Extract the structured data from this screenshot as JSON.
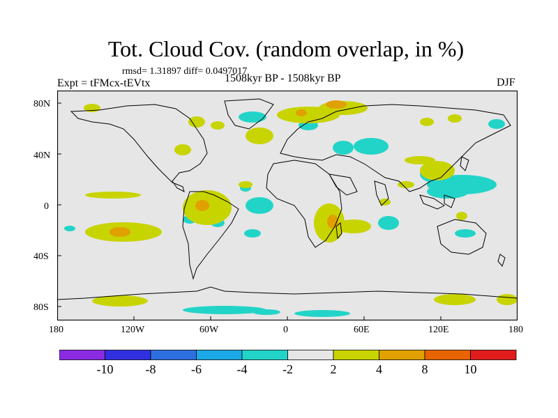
{
  "title": "Tot. Cloud Cov. (random overlap, in %)",
  "stats": "rmsd= 1.31897 diff= 0.0497017",
  "expt_label": "Expt = tFMcx-tEVtx",
  "period": "1508kyr BP - 1508kyr BP",
  "season": "DJF",
  "lat_ticks": [
    "80N",
    "40N",
    "0",
    "40S",
    "80S"
  ],
  "lon_ticks": [
    "180",
    "120W",
    "60W",
    "0",
    "60E",
    "120E",
    "180"
  ],
  "colorbar": {
    "colors": [
      "#8a2be2",
      "#3030e0",
      "#2e6fe0",
      "#1aa8e6",
      "#22d4c8",
      "#e6e6e6",
      "#c8d400",
      "#e0a000",
      "#e86400",
      "#e01c1c"
    ],
    "labels": [
      "-10",
      "-8",
      "-6",
      "-4",
      "-2",
      "2",
      "4",
      "8",
      "10"
    ]
  },
  "colors": {
    "land_bg": "#e6e6e6",
    "teal": "#22d4c8",
    "yellow": "#c8d400",
    "orange": "#e0a000",
    "red_orange": "#e86400"
  }
}
